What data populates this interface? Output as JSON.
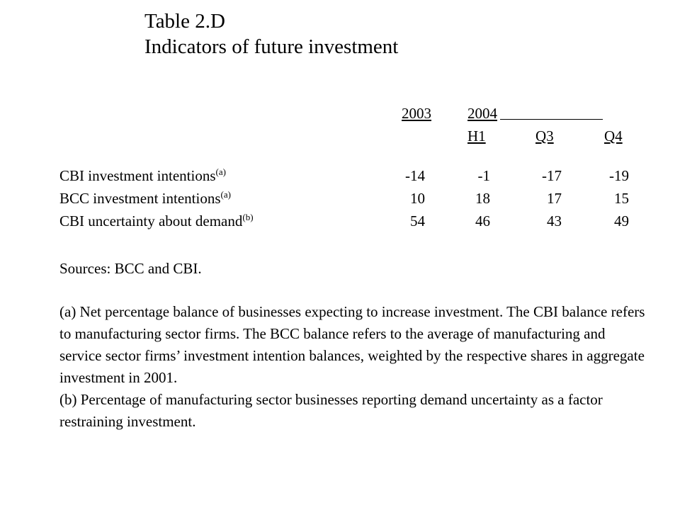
{
  "title": {
    "line1": "Table 2.D",
    "line2": "Indicators of future investment"
  },
  "table": {
    "year_headers": [
      "2003",
      "2004"
    ],
    "sub_headers": [
      "H1",
      "Q3",
      "Q4"
    ],
    "rows": [
      {
        "label": "CBI investment intentions",
        "note": "(a)",
        "values": [
          "-14",
          "-1",
          "-17",
          "-19"
        ]
      },
      {
        "label": "BCC investment intentions",
        "note": "(a)",
        "values": [
          "10",
          "18",
          "17",
          "15"
        ]
      },
      {
        "label": "CBI uncertainty about demand",
        "note": "(b)",
        "values": [
          "54",
          "46",
          "43",
          "49"
        ]
      }
    ]
  },
  "notes": {
    "sources": "Sources:  BCC and CBI.",
    "note_a": "(a)  Net percentage balance of businesses expecting to increase investment. The CBI balance refers to manufacturing sector firms.  The BCC balance refers to the average of manufacturing and service sector firms’ investment intention balances, weighted by the respective shares in aggregate investment in 2001.",
    "note_b": "(b)  Percentage of manufacturing sector businesses reporting demand uncertainty as a factor restraining investment."
  }
}
